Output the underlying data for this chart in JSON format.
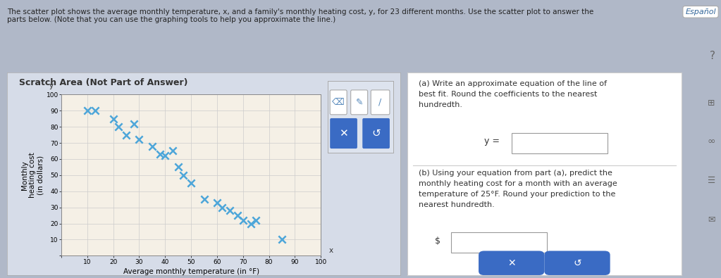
{
  "scatter_x": [
    10,
    13,
    20,
    22,
    25,
    28,
    30,
    35,
    38,
    40,
    43,
    45,
    47,
    50,
    55,
    60,
    62,
    65,
    68,
    70,
    73,
    75,
    85
  ],
  "scatter_y": [
    90,
    90,
    85,
    80,
    75,
    82,
    72,
    68,
    63,
    62,
    65,
    55,
    50,
    45,
    35,
    33,
    30,
    28,
    25,
    22,
    20,
    22,
    10
  ],
  "xlim": [
    0,
    100
  ],
  "ylim": [
    0,
    100
  ],
  "xticks": [
    0,
    10,
    20,
    30,
    40,
    50,
    60,
    70,
    80,
    90,
    100
  ],
  "yticks": [
    0,
    10,
    20,
    30,
    40,
    50,
    60,
    70,
    80,
    90,
    100
  ],
  "xlabel": "Average monthly temperature (in °F)",
  "ylabel": "Monthly\nheating cost\n(in dollars)",
  "title_scratch": "Scratch Area (Not Part of Answer)",
  "marker_color": "#4da6d9",
  "marker_size": 55,
  "marker_lw": 1.8,
  "grid_color": "#cccccc",
  "plot_bg": "#f5f0e6",
  "scratch_bg": "#d6dce8",
  "right_panel_bg": "#ffffff",
  "text_color": "#333333",
  "font_size_axis_label": 7.5,
  "font_size_tick": 6.5,
  "font_size_title": 9,
  "part_a_text": "(a) Write an approximate equation of the line of\nbest fit. Round the coefficients to the nearest\nhundredth.",
  "part_b_text": "(b) Using your equation from part (a), predict the\nmonthly heating cost for a month with an average\ntemperature of 25°F. Round your prediction to the\nnearest hundredth.",
  "y_eq_label": "y =",
  "dollar_label": "$",
  "espanol_text": "Español",
  "btn_color": "#3a6bc4",
  "fig_bg": "#b0b8c8",
  "header_text": "The scatter plot shows the average monthly temperature, x, and a family's monthly heating cost, y, for 23 different months. Use the scatter plot to answer the\nparts below. (Note that you can use the graphing tools to help you approximate the line.)"
}
